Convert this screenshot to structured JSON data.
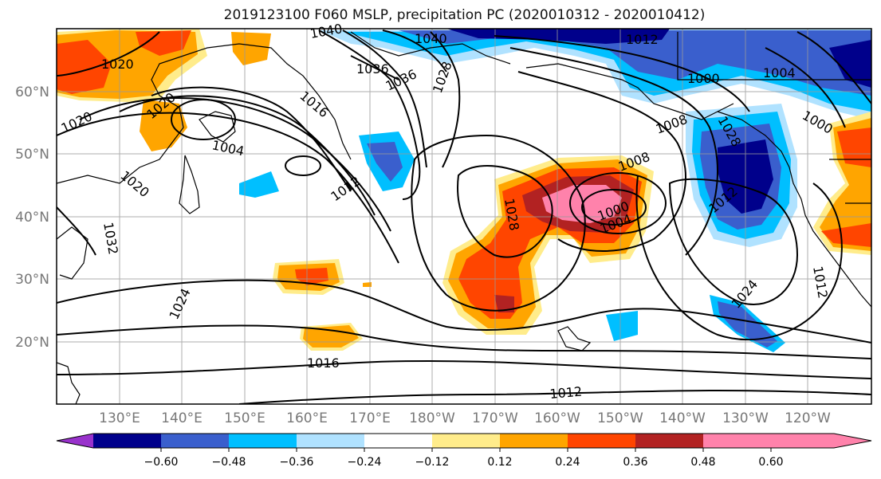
{
  "title": "2019123100 F060 MSLP, precipitation PC (2020010312 - 2020010412)",
  "lat_labels": [
    "60°N",
    "50°N",
    "40°N",
    "30°N",
    "20°N"
  ],
  "lon_labels": [
    "130°E",
    "140°E",
    "150°E",
    "160°E",
    "170°E",
    "180°W",
    "170°W",
    "160°W",
    "150°W",
    "140°W",
    "130°W",
    "120°W"
  ],
  "colorbar": {
    "colors": [
      "#9932CC",
      "#00008B",
      "#3A5FCD",
      "#00BFFF",
      "#B0E2FF",
      "#FFFFFF",
      "#FFEC8B",
      "#FFA500",
      "#FF4500",
      "#B22222",
      "#FF82AB"
    ],
    "ticks": [
      "−0.60",
      "−0.48",
      "−0.36",
      "−0.24",
      "−0.12",
      "0.12",
      "0.24",
      "0.36",
      "0.48",
      "0.60"
    ]
  },
  "contour_labels": [
    "1040",
    "1040",
    "1036",
    "1036",
    "1020",
    "1020",
    "1020",
    "1016",
    "1012",
    "1012",
    "1012",
    "1004",
    "1004",
    "1004",
    "1000",
    "1000",
    "1000",
    "1008",
    "1008",
    "1028",
    "1028",
    "1024",
    "1024",
    "1016",
    "1012",
    "1012",
    "1032",
    "1028",
    "1020"
  ]
}
